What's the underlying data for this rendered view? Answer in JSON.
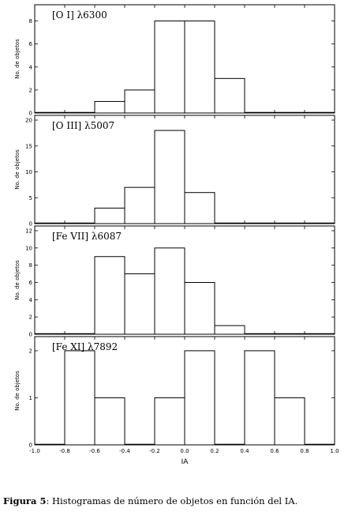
{
  "chart_data": [
    {
      "type": "bar",
      "title": "[O I] λ6300",
      "xlabel": "",
      "ylabel": "No. de objetos",
      "bin_edges": [
        -1.0,
        -0.8,
        -0.6,
        -0.4,
        -0.2,
        0.0,
        0.2,
        0.4,
        0.6,
        0.8,
        1.0
      ],
      "values": [
        0,
        0,
        1,
        2,
        8,
        8,
        3,
        0,
        0,
        0
      ],
      "xlim": [
        -1.0,
        1.0
      ],
      "ylim": [
        0,
        9
      ],
      "yticks": [
        0,
        2,
        4,
        6,
        8
      ]
    },
    {
      "type": "bar",
      "title": "[O III] λ5007",
      "xlabel": "",
      "ylabel": "No. de objetos",
      "bin_edges": [
        -1.0,
        -0.8,
        -0.6,
        -0.4,
        -0.2,
        0.0,
        0.2,
        0.4,
        0.6,
        0.8,
        1.0
      ],
      "values": [
        0,
        0,
        3,
        7,
        18,
        6,
        0,
        0,
        0,
        0
      ],
      "xlim": [
        -1.0,
        1.0
      ],
      "ylim": [
        0,
        20
      ],
      "yticks": [
        0,
        5,
        10,
        15,
        20
      ]
    },
    {
      "type": "bar",
      "title": "[Fe VII] λ6087",
      "xlabel": "",
      "ylabel": "No. de objetos",
      "bin_edges": [
        -1.0,
        -0.8,
        -0.6,
        -0.4,
        -0.2,
        0.0,
        0.2,
        0.4,
        0.6,
        0.8,
        1.0
      ],
      "values": [
        0,
        0,
        9,
        7,
        10,
        6,
        1,
        0,
        0,
        0
      ],
      "xlim": [
        -1.0,
        1.0
      ],
      "ylim": [
        0,
        12
      ],
      "yticks": [
        0,
        2,
        4,
        6,
        8,
        10,
        12
      ]
    },
    {
      "type": "bar",
      "title": "[Fe XI] λ7892",
      "xlabel": "IA",
      "ylabel": "No. de objetos",
      "bin_edges": [
        -1.0,
        -0.8,
        -0.6,
        -0.4,
        -0.2,
        0.0,
        0.2,
        0.4,
        0.6,
        0.8,
        1.0
      ],
      "values": [
        0,
        2,
        1,
        0,
        1,
        2,
        0,
        2,
        1,
        0
      ],
      "xlim": [
        -1.0,
        1.0
      ],
      "ylim": [
        0,
        2.2
      ],
      "yticks": [
        0,
        1,
        2
      ],
      "xticks": [
        "-1.0",
        "-0.8",
        "-0.6",
        "-0.4",
        "-0.2",
        "0.0",
        "0.2",
        "0.4",
        "0.6",
        "0.8",
        "1.0"
      ]
    }
  ],
  "caption": {
    "label": "Figura 5",
    "text": ": Histogramas de número de objetos en función del IA."
  }
}
